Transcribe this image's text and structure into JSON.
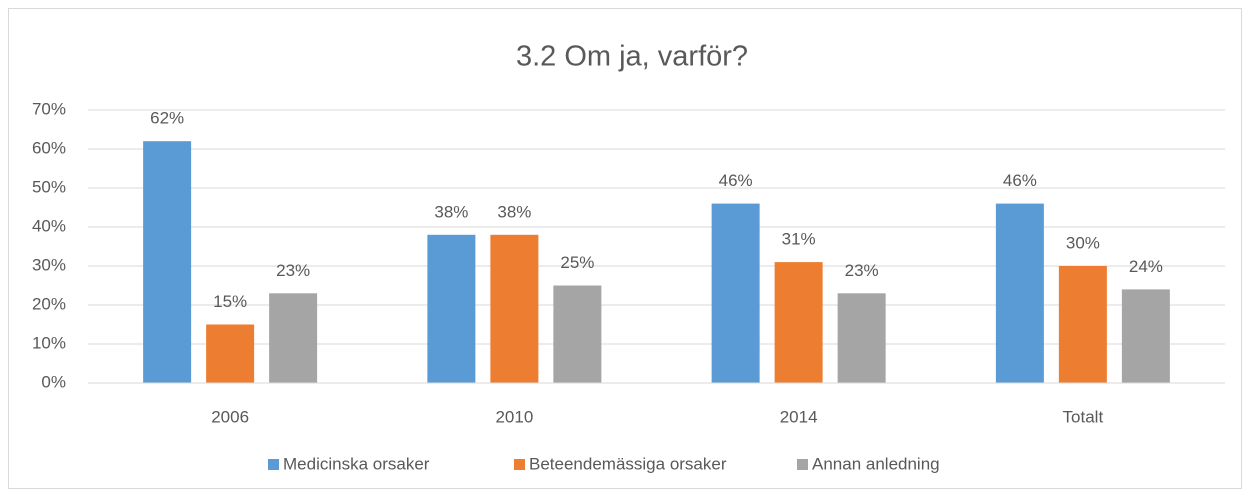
{
  "chart_data": {
    "type": "bar",
    "title": "3.2 Om ja, varför?",
    "categories": [
      "2006",
      "2010",
      "2014",
      "Totalt"
    ],
    "series": [
      {
        "name": "Medicinska orsaker",
        "color": "#5b9bd5",
        "values": [
          62,
          38,
          46,
          46
        ],
        "value_labels": [
          "62%",
          "38%",
          "46%",
          "46%"
        ]
      },
      {
        "name": "Beteendemässiga orsaker",
        "color": "#ed7d31",
        "values": [
          15,
          38,
          31,
          30
        ],
        "value_labels": [
          "15%",
          "38%",
          "31%",
          "30%"
        ]
      },
      {
        "name": "Annan anledning",
        "color": "#a5a5a5",
        "values": [
          23,
          25,
          23,
          24
        ],
        "value_labels": [
          "23%",
          "25%",
          "23%",
          "24%"
        ]
      }
    ],
    "ylim": [
      0,
      70
    ],
    "yticks": [
      {
        "value": 0,
        "label": "0%"
      },
      {
        "value": 10,
        "label": "10%"
      },
      {
        "value": 20,
        "label": "20%"
      },
      {
        "value": 30,
        "label": "30%"
      },
      {
        "value": 40,
        "label": "40%"
      },
      {
        "value": 50,
        "label": "50%"
      },
      {
        "value": 60,
        "label": "60%"
      },
      {
        "value": 70,
        "label": "70%"
      }
    ],
    "grid": true,
    "legend": "bottom"
  }
}
